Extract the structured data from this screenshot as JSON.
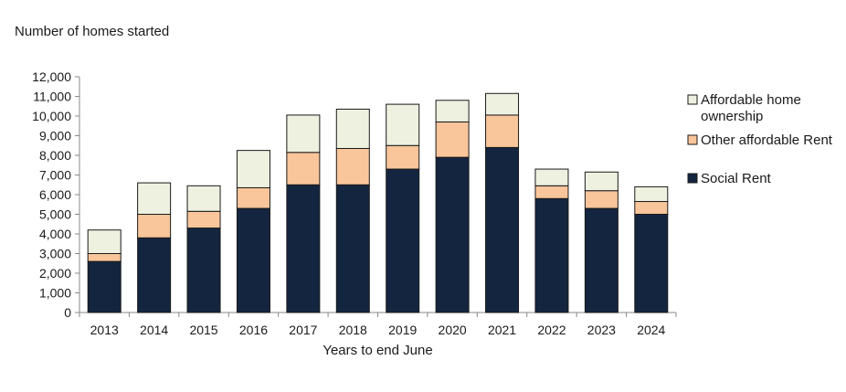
{
  "chart_data": {
    "type": "bar",
    "stacked": true,
    "title": "Number of homes started",
    "xlabel": "Years to end June",
    "ylabel": "",
    "ylim": [
      0,
      12000
    ],
    "yticks": [
      "0",
      "1,000",
      "2,000",
      "3,000",
      "4,000",
      "5,000",
      "6,000",
      "7,000",
      "8,000",
      "9,000",
      "10,000",
      "11,000",
      "12,000"
    ],
    "categories": [
      "2013",
      "2014",
      "2015",
      "2016",
      "2017",
      "2018",
      "2019",
      "2020",
      "2021",
      "2022",
      "2023",
      "2024"
    ],
    "series": [
      {
        "name": "Social Rent",
        "color": "#14253f",
        "values": [
          2600,
          3800,
          4300,
          5300,
          6500,
          6500,
          7300,
          7900,
          8400,
          5800,
          5300,
          5000
        ]
      },
      {
        "name": "Other affordable Rent",
        "color": "#f9c59b",
        "values": [
          400,
          1200,
          850,
          1050,
          1650,
          1850,
          1200,
          1800,
          1650,
          650,
          900,
          650
        ]
      },
      {
        "name": "Affordable home ownership",
        "color": "#eef1e0",
        "values": [
          1200,
          1600,
          1300,
          1900,
          1900,
          2000,
          2100,
          1100,
          1100,
          850,
          950,
          750
        ]
      }
    ],
    "legend": {
      "placement": "right",
      "entries": [
        {
          "lines": [
            "Affordable home",
            "ownership"
          ],
          "series": "Affordable home ownership"
        },
        {
          "lines": [
            "Other affordable Rent"
          ],
          "series": "Other affordable Rent"
        },
        {
          "lines": [
            "Social Rent"
          ],
          "series": "Social Rent"
        }
      ]
    },
    "grid": false
  }
}
